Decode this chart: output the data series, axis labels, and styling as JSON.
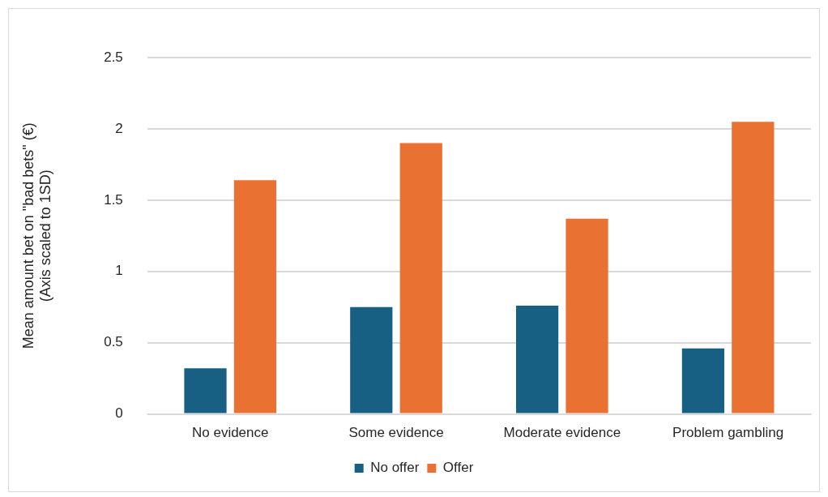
{
  "chart_data": {
    "type": "bar",
    "ylabel": "Mean amount bet on \"bad bets\" (€)\n(Axis scaled to 1SD)",
    "categories": [
      "No evidence",
      "Some evidence",
      "Moderate evidence",
      "Problem gambling"
    ],
    "series": [
      {
        "name": "No offer",
        "color": "#176083",
        "values": [
          0.32,
          0.75,
          0.76,
          0.46
        ]
      },
      {
        "name": "Offer",
        "color": "#e97132",
        "values": [
          1.64,
          1.9,
          1.37,
          2.05
        ]
      }
    ],
    "ylim": [
      0,
      2.5
    ],
    "yticks": [
      0,
      0.5,
      1,
      1.5,
      2,
      2.5
    ],
    "grid": "y",
    "legend": "bottom"
  }
}
